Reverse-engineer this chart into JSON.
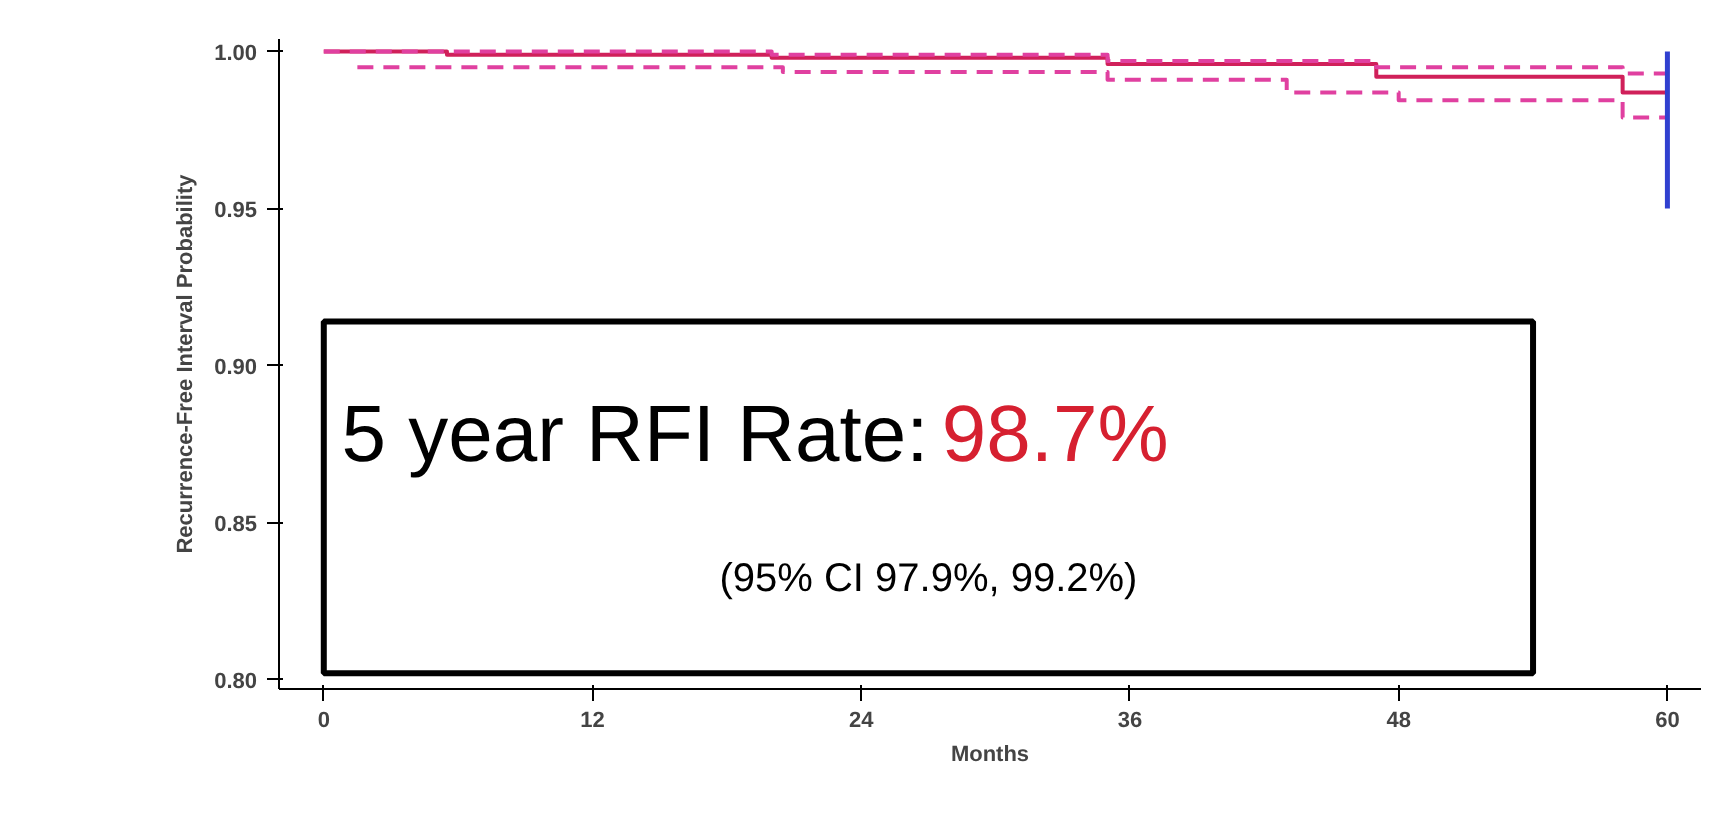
{
  "chart_data": {
    "type": "step",
    "xlabel": "Months",
    "ylabel": "Recurrence-Free Interval Probability",
    "series": [
      {
        "color": "#d0205a",
        "line_style": "solid",
        "x": [
          0,
          5.5,
          20,
          35,
          47,
          58,
          60
        ],
        "values": [
          1.0,
          0.999,
          0.998,
          0.996,
          0.992,
          0.987,
          0.987
        ]
      },
      {
        "color": "#e040a0",
        "line_style": "dashed",
        "x": [
          0,
          20,
          35,
          47,
          58,
          60
        ],
        "values": [
          1.0,
          0.999,
          0.997,
          0.995,
          0.993,
          0.993
        ]
      },
      {
        "color": "#e040a0",
        "line_style": "dashed",
        "x": [
          1.5,
          20.5,
          35,
          43,
          48,
          58,
          60
        ],
        "values": [
          0.995,
          0.9935,
          0.991,
          0.987,
          0.9845,
          0.979,
          0.979
        ]
      },
      {
        "type": "line",
        "color": "#3040d0",
        "line_style": "solid",
        "x": [
          60,
          60
        ],
        "values": [
          0.95,
          1.0
        ]
      }
    ],
    "annotations": [
      "5 year RFI Rate:",
      "98.7%",
      "(95% CI 97.9%, 99.2%)"
    ],
    "xlim": [
      -2,
      61.5
    ],
    "ylim": [
      0.797,
      1.004
    ],
    "xticks": [
      0,
      12,
      24,
      36,
      48,
      60
    ],
    "yticks": [
      {
        "value": 0.8,
        "label": "0.80"
      },
      0.85,
      {
        "value": 0.9,
        "label": "0.90"
      },
      0.95,
      {
        "value": 1.0,
        "label": "1.00"
      }
    ],
    "grid": false
  }
}
